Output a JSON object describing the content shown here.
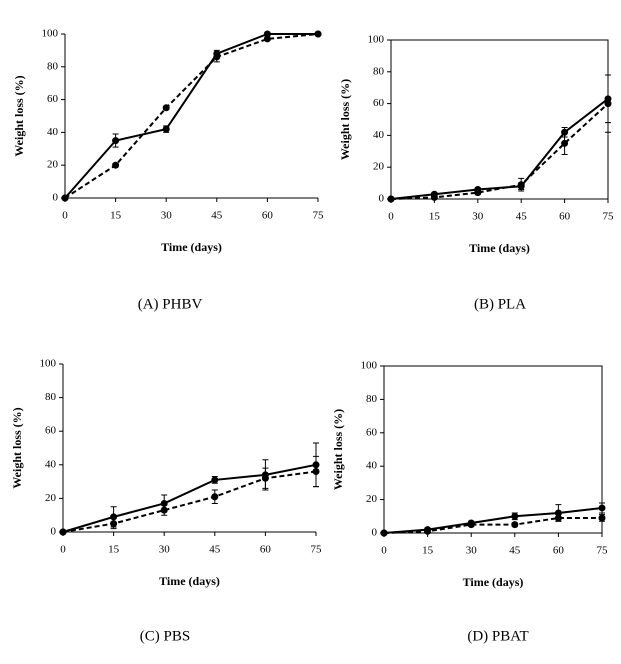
{
  "chart_data": [
    {
      "type": "line",
      "caption": "(A) PHBV",
      "x_label": "Time (days)",
      "y_label": "Weight loss (%)",
      "x": [
        0,
        15,
        30,
        45,
        60,
        75
      ],
      "xlim": [
        0,
        75
      ],
      "xticks": [
        0,
        15,
        30,
        45,
        60,
        75
      ],
      "ylim": [
        0,
        100
      ],
      "yticks": [
        0,
        20,
        40,
        60,
        80,
        100
      ],
      "frame": false,
      "series": [
        {
          "color": "#000000",
          "style": "solid",
          "values": [
            0,
            35,
            42,
            88,
            100,
            100
          ],
          "errors": [
            0,
            4,
            2,
            2,
            1,
            0
          ]
        },
        {
          "color": "#000000",
          "style": "dashed",
          "values": [
            0,
            20,
            55,
            86,
            97,
            100
          ],
          "errors": [
            0,
            1,
            1,
            3,
            1,
            0
          ]
        }
      ]
    },
    {
      "type": "line",
      "caption": "(B) PLA",
      "x_label": "Time (days)",
      "y_label": "Weight loss (%)",
      "x": [
        0,
        15,
        30,
        45,
        60,
        75
      ],
      "xlim": [
        0,
        75
      ],
      "xticks": [
        0,
        15,
        30,
        45,
        60,
        75
      ],
      "ylim": [
        0,
        100
      ],
      "yticks": [
        0,
        20,
        40,
        60,
        80,
        100
      ],
      "frame": true,
      "series": [
        {
          "color": "#000000",
          "style": "solid",
          "values": [
            0,
            3,
            6,
            8,
            42,
            63
          ],
          "errors": [
            0,
            1,
            1,
            2,
            3,
            15
          ]
        },
        {
          "color": "#000000",
          "style": "dashed",
          "values": [
            0,
            1,
            4,
            9,
            35,
            60
          ],
          "errors": [
            0,
            1,
            1,
            4,
            7,
            18
          ]
        }
      ]
    },
    {
      "type": "line",
      "caption": "(C) PBS",
      "x_label": "Time (days)",
      "y_label": "Weight loss (%)",
      "x": [
        0,
        15,
        30,
        45,
        60,
        75
      ],
      "xlim": [
        0,
        75
      ],
      "xticks": [
        0,
        15,
        30,
        45,
        60,
        75
      ],
      "ylim": [
        0,
        100
      ],
      "yticks": [
        0,
        20,
        40,
        60,
        80,
        100
      ],
      "frame": false,
      "series": [
        {
          "color": "#000000",
          "style": "solid",
          "values": [
            0,
            9,
            17,
            31,
            34,
            40
          ],
          "errors": [
            0,
            6,
            5,
            2,
            9,
            13
          ]
        },
        {
          "color": "#000000",
          "style": "dashed",
          "values": [
            0,
            5,
            13,
            21,
            32,
            36
          ],
          "errors": [
            0,
            3,
            3,
            4,
            6,
            9
          ]
        }
      ]
    },
    {
      "type": "line",
      "caption": "(D) PBAT",
      "x_label": "Time (days)",
      "y_label": "Weight loss (%)",
      "x": [
        0,
        15,
        30,
        45,
        60,
        75
      ],
      "xlim": [
        0,
        75
      ],
      "xticks": [
        0,
        15,
        30,
        45,
        60,
        75
      ],
      "ylim": [
        0,
        100
      ],
      "yticks": [
        0,
        20,
        40,
        60,
        80,
        100
      ],
      "frame": true,
      "series": [
        {
          "color": "#000000",
          "style": "solid",
          "values": [
            0,
            2,
            6,
            10,
            12,
            15
          ],
          "errors": [
            0,
            1,
            1,
            2,
            5,
            3
          ]
        },
        {
          "color": "#000000",
          "style": "dashed",
          "values": [
            0,
            1,
            5,
            5,
            9,
            9
          ],
          "errors": [
            0,
            1,
            1,
            1,
            2,
            2
          ]
        }
      ]
    }
  ]
}
